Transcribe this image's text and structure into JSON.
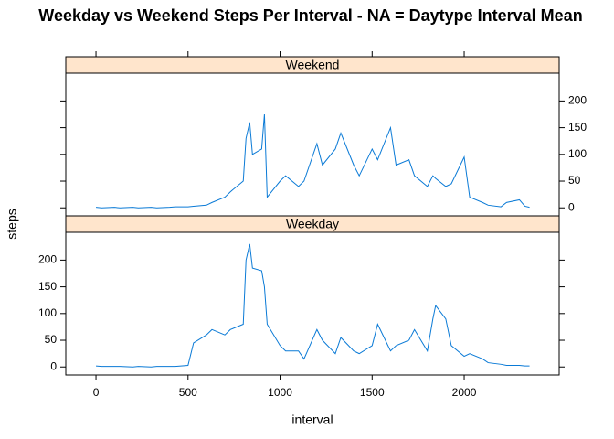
{
  "chart_data": {
    "type": "line",
    "title": "Weekday vs Weekend Steps Per Interval - NA = Daytype Interval Mean",
    "xlabel": "interval",
    "ylabel": "steps",
    "xlim": [
      -164,
      2516
    ],
    "ylim": [
      -15,
      252
    ],
    "xticks": [
      0,
      500,
      1000,
      1500,
      2000
    ],
    "yticks": [
      0,
      50,
      100,
      150,
      200
    ],
    "strip_color": "#ffe5cc",
    "x": [
      0,
      30,
      100,
      130,
      200,
      230,
      300,
      330,
      400,
      430,
      500,
      530,
      600,
      630,
      700,
      730,
      800,
      815,
      835,
      850,
      900,
      915,
      930,
      1000,
      1030,
      1100,
      1130,
      1200,
      1230,
      1300,
      1330,
      1400,
      1430,
      1500,
      1530,
      1600,
      1630,
      1700,
      1730,
      1800,
      1830,
      1845,
      1900,
      1930,
      2000,
      2030,
      2100,
      2130,
      2200,
      2230,
      2300,
      2330,
      2355
    ],
    "series": [
      {
        "name": "Weekend",
        "color": "#0a7ad6",
        "values": [
          1,
          0,
          1,
          0,
          1,
          0,
          1,
          0,
          1,
          2,
          2,
          3,
          5,
          10,
          20,
          30,
          50,
          130,
          160,
          100,
          110,
          175,
          20,
          50,
          60,
          40,
          50,
          120,
          80,
          110,
          140,
          80,
          60,
          110,
          90,
          150,
          80,
          90,
          60,
          40,
          60,
          55,
          40,
          45,
          95,
          20,
          10,
          5,
          2,
          10,
          15,
          3,
          1
        ]
      },
      {
        "name": "Weekday",
        "color": "#0a7ad6",
        "values": [
          2,
          1,
          1,
          1,
          0,
          1,
          0,
          1,
          1,
          1,
          3,
          45,
          60,
          70,
          60,
          70,
          80,
          200,
          230,
          185,
          180,
          150,
          80,
          40,
          30,
          30,
          15,
          70,
          50,
          25,
          55,
          30,
          25,
          40,
          80,
          30,
          40,
          50,
          70,
          30,
          90,
          115,
          90,
          40,
          20,
          25,
          15,
          8,
          5,
          3,
          3,
          2,
          2
        ]
      }
    ]
  }
}
